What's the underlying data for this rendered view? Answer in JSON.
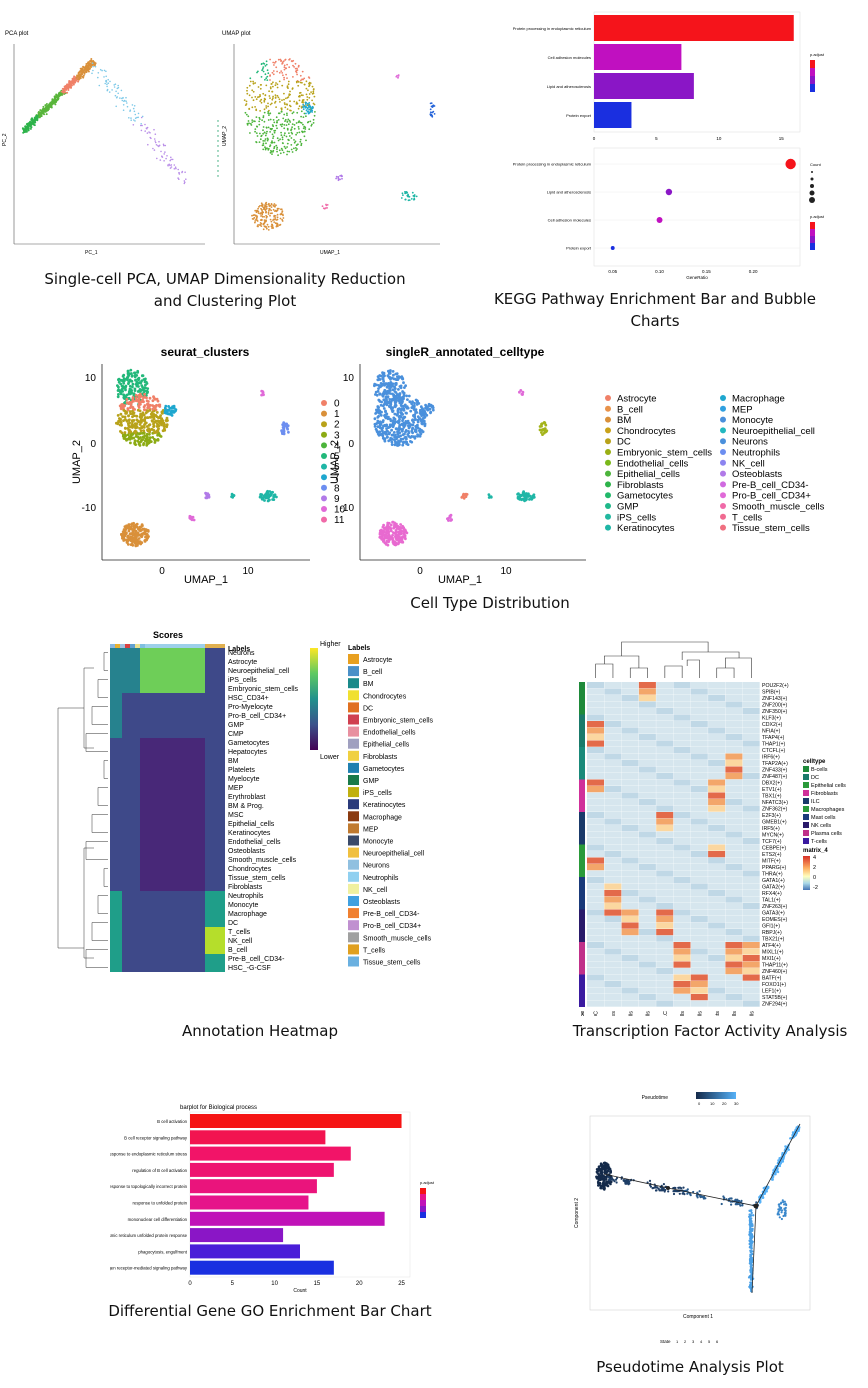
{
  "captions": {
    "pca_umap": "Single-cell PCA, UMAP Dimensionality Reduction and Clustering Plot",
    "kegg": "KEGG Pathway Enrichment Bar and Bubble Charts",
    "celltype": "Cell Type Distribution",
    "heatmap": "Annotation Heatmap",
    "tf": "Transcription Factor Activity Analysis",
    "go": "Differential Gene GO Enrichment Bar Chart",
    "pseudo": "Pseudotime Analysis Plot"
  },
  "colors": {
    "red": "#f5141b",
    "magenta": "#c010c0",
    "purple": "#8a16c6",
    "blue": "#1a2fe0",
    "seurat": [
      "#f08068",
      "#d9903a",
      "#b8a21a",
      "#8cab14",
      "#4cb43b",
      "#22b87a",
      "#1fb6a6",
      "#1ea7cf",
      "#6c8ef0",
      "#b17ae8",
      "#e06ad8",
      "#f06aa8"
    ]
  },
  "chart_data": [
    {
      "type": "scatter",
      "title": "PCA plot",
      "xlabel": "PC_1",
      "ylabel": "PC_2"
    },
    {
      "type": "scatter",
      "title": "UMAP plot",
      "xlabel": "UMAP_1",
      "ylabel": "UMAP_2"
    },
    {
      "type": "bar",
      "categories": [
        "Protein processing in endoplasmic reticulum",
        "Cell adhesion molecules",
        "Lipid and atherosclerosis",
        "Protein export"
      ],
      "values": [
        16,
        7,
        8,
        3
      ],
      "xlim": [
        0,
        16.5
      ],
      "xticks": [
        "0",
        "5",
        "10",
        "15"
      ],
      "legend_title": "p.adjust"
    },
    {
      "type": "scatter",
      "categories": [
        "Protein processing in endoplasmic reticulum",
        "Lipid and atherosclerosis",
        "Cell adhesion molecules",
        "Protein export"
      ],
      "x": [
        0.24,
        0.11,
        0.1,
        0.05
      ],
      "size": [
        16,
        8,
        7,
        3
      ],
      "xlabel": "GeneRatio",
      "xticks": [
        "0.05",
        "0.10",
        "0.15",
        "0.20"
      ],
      "legend_titles": [
        "Count",
        "p.adjust"
      ]
    },
    {
      "type": "scatter",
      "title": "seurat_clusters",
      "xlabel": "UMAP_1",
      "ylabel": "UMAP_2",
      "xticks": [
        "0",
        "10"
      ],
      "yticks": [
        "10",
        "0",
        "-10"
      ],
      "legend": [
        "0",
        "1",
        "2",
        "3",
        "4",
        "5",
        "6",
        "7",
        "8",
        "9",
        "10",
        "11"
      ]
    },
    {
      "type": "scatter",
      "title": "singleR_annotated_celltype",
      "xlabel": "UMAP_1",
      "ylabel": "UMAP_2",
      "xticks": [
        "0",
        "10"
      ],
      "yticks": [
        "10",
        "0",
        "-10"
      ],
      "legend_col1": [
        "Astrocyte",
        "B_cell",
        "BM",
        "Chondrocytes",
        "DC",
        "Embryonic_stem_cells",
        "Endothelial_cells",
        "Epithelial_cells",
        "Fibroblasts",
        "Gametocytes",
        "GMP",
        "iPS_cells",
        "Keratinocytes"
      ],
      "legend_col2": [
        "Macrophage",
        "MEP",
        "Monocyte",
        "Neuroepithelial_cell",
        "Neurons",
        "Neutrophils",
        "NK_cell",
        "Osteoblasts",
        "Pre-B_cell_CD34-",
        "Pro-B_cell_CD34+",
        "Smooth_muscle_cells",
        "T_cells",
        "Tissue_stem_cells"
      ]
    },
    {
      "type": "heatmap",
      "title": "Scores",
      "labels_header": "Labels",
      "rows": [
        "Neurons",
        "Astrocyte",
        "Neuroepithelial_cell",
        "iPS_cells",
        "Embryonic_stem_cells",
        "HSC_CD34+",
        "Pro-Myelocyte",
        "Pro-B_cell_CD34+",
        "GMP",
        "CMP",
        "Gametocytes",
        "Hepatocytes",
        "BM",
        "Platelets",
        "Myelocyte",
        "MEP",
        "Erythroblast",
        "BM & Prog.",
        "MSC",
        "Epithelial_cells",
        "Keratinocytes",
        "Endothelial_cells",
        "Osteoblasts",
        "Smooth_muscle_cells",
        "Chondrocytes",
        "Tissue_stem_cells",
        "Fibroblasts",
        "Neutrophils",
        "Monocyte",
        "Macrophage",
        "DC",
        "T_cells",
        "NK_cell",
        "B_cell",
        "Pre-B_cell_CD34-",
        "HSC_-G-CSF"
      ],
      "scale_labels": [
        "Higher",
        "Lower"
      ],
      "legend_title": "Labels",
      "legend": [
        "Astrocyte",
        "B_cell",
        "BM",
        "Chondrocytes",
        "DC",
        "Embryonic_stem_cells",
        "Endothelial_cells",
        "Epithelial_cells",
        "Fibroblasts",
        "Gametocytes",
        "GMP",
        "iPS_cells",
        "Keratinocytes",
        "Macrophage",
        "MEP",
        "Monocyte",
        "Neuroepithelial_cell",
        "Neurons",
        "Neutrophils",
        "NK_cell",
        "Osteoblasts",
        "Pre-B_cell_CD34-",
        "Pro-B_cell_CD34+",
        "Smooth_muscle_cells",
        "T_cells",
        "Tissue_stem_cells"
      ]
    },
    {
      "type": "heatmap",
      "columns": [
        "DC",
        "Macrophages",
        "Mast cells",
        "B-cells",
        "ILC",
        "NK cells",
        "T-cells",
        "Fibroblasts",
        "Epithelial cells",
        "Plasma cells"
      ],
      "column_header": "celltype",
      "rows": [
        "POU2F2(+)",
        "SPIB(+)",
        "ZNF143(+)",
        "ZNF200(+)",
        "ZNF350(+)",
        "KLF3(+)",
        "CDX2(+)",
        "NFIA(+)",
        "TFAP4(+)",
        "THAP1(+)",
        "CTCFL(+)",
        "IRF6(+)",
        "TFAP2A(+)",
        "ZNF433(+)",
        "ZNF487(+)",
        "DBX2(+)",
        "ETV1(+)",
        "TBX1(+)",
        "NFATC3(+)",
        "ZNF362(+)",
        "E2F3(+)",
        "GMEB1(+)",
        "IRF5(+)",
        "MYCN(+)",
        "TCF7(+)",
        "CEBPE(+)",
        "ETS2(+)",
        "MITF(+)",
        "PPARG(+)",
        "THRA(+)",
        "GATA1(+)",
        "GATA2(+)",
        "RFX4(+)",
        "TAL1(+)",
        "ZNF263(+)",
        "GATA3(+)",
        "EOMES(+)",
        "GFI1(+)",
        "RBPJ(+)",
        "TBX21(+)",
        "ATF4(+)",
        "MIXL1(+)",
        "MXI1(+)",
        "THAP11(+)",
        "ZNF460(+)",
        "BATF(+)",
        "FOXO1(+)",
        "LEF1(+)",
        "STAT5B(+)",
        "ZNF294(+)"
      ],
      "legend_title": "celltype",
      "legend": [
        "B-cells",
        "DC",
        "Epithelial cells",
        "Fibroblasts",
        "ILC",
        "Macrophages",
        "Mast cells",
        "NK cells",
        "Plasma cells",
        "T-cells"
      ],
      "scale_title": "matrix_4",
      "scale_ticks": [
        "4",
        "2",
        "0",
        "-2"
      ]
    },
    {
      "type": "bar",
      "title": "barplot for Biological process",
      "categories": [
        "B cell activation",
        "B cell receptor signaling pathway",
        "response to endoplasmic reticulum stress",
        "regulation of B cell activation",
        "response to topologically incorrect protein",
        "response to unfolded protein",
        "mononuclear cell differentiation",
        "endoplasmic reticulum unfolded protein response",
        "phagocytosis, engulfment",
        "antigen receptor-mediated signaling pathway"
      ],
      "values": [
        25,
        16,
        19,
        17,
        15,
        14,
        23,
        11,
        13,
        17
      ],
      "xlim": [
        0,
        26
      ],
      "xticks": [
        "0",
        "5",
        "10",
        "15",
        "20",
        "25"
      ],
      "xlabel": "Count",
      "legend_title": "p.adjust"
    },
    {
      "type": "scatter",
      "title": "Pseudotime",
      "xlabel": "Component 1",
      "ylabel": "Component 2",
      "scale_ticks": [
        "0",
        "10",
        "20",
        "30"
      ],
      "state_label": "State",
      "states": [
        "1",
        "2",
        "3",
        "4",
        "5",
        "6"
      ]
    }
  ]
}
